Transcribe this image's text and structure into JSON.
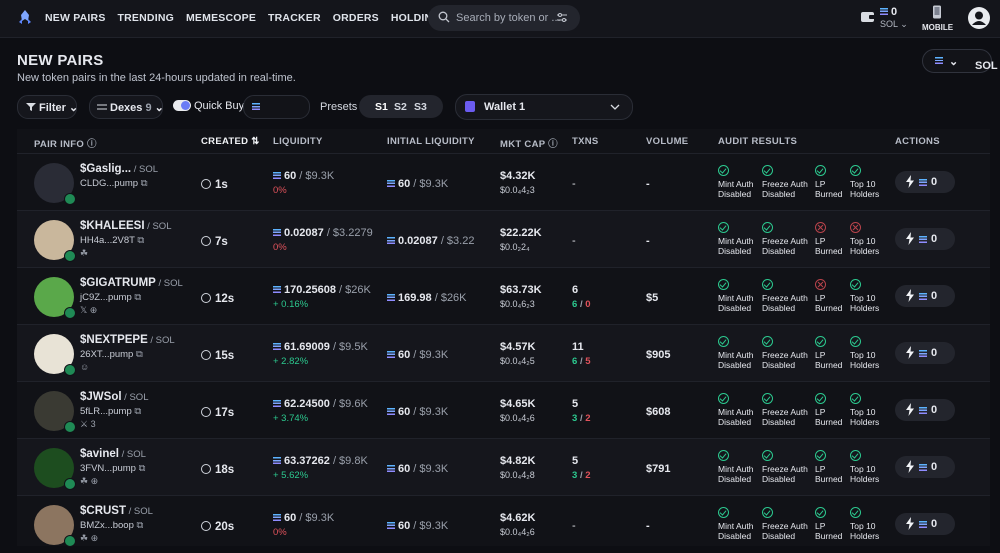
{
  "nav": {
    "items": [
      "NEW PAIRS",
      "TRENDING",
      "MEMESCOPE",
      "TRACKER",
      "ORDERS",
      "HOLDINGS"
    ]
  },
  "search": {
    "placeholder": "Search by token or ..."
  },
  "wallet_top": {
    "amount": "0",
    "currency": "SOL"
  },
  "mobile": {
    "label": "MOBILE"
  },
  "page": {
    "title": "NEW PAIRS",
    "subtitle": "New token pairs in the last 24-hours updated in real-time.",
    "chain": "SOL"
  },
  "controls": {
    "filter": "Filter",
    "dexes": "Dexes",
    "dexes_count": "9",
    "quick_buy": "Quick Buy",
    "presets_label": "Presets",
    "presets": [
      "S1",
      "S2",
      "S3"
    ],
    "wallet": "Wallet 1"
  },
  "table": {
    "headers": {
      "pair_info": "PAIR INFO",
      "created": "CREATED",
      "liquidity": "LIQUIDITY",
      "initial_liquidity": "INITIAL LIQUIDITY",
      "mkt_cap": "MKT CAP",
      "txns": "TXNS",
      "volume": "VOLUME",
      "audit": "AUDIT RESULTS",
      "actions": "ACTIONS"
    },
    "audit_labels": {
      "mint": [
        "Mint Auth",
        "Disabled"
      ],
      "freeze": [
        "Freeze Auth",
        "Disabled"
      ],
      "lp": [
        "LP",
        "Burned"
      ],
      "top": [
        "Top 10",
        "Holders"
      ]
    },
    "rows": [
      {
        "name": "$Gaslig...",
        "pair": " / SOL",
        "addr": "CLDG...pump",
        "socials": "",
        "created": "1s",
        "liq": "60",
        "liq_usd": " / $9.3K",
        "liq_pct": "0%",
        "liq_pct_color": "red",
        "iliq": "60",
        "iliq_usd": " / $9.3K",
        "mcap": "$4.32K",
        "price": "$0.0₄4₂3",
        "txns": "-",
        "buys": "",
        "sells": "",
        "volume": "-",
        "audit": [
          "ok",
          "ok",
          "ok",
          "ok"
        ],
        "action": "0",
        "avatar_color": "#2a2c36"
      },
      {
        "name": "$KHALEESI",
        "pair": " / SOL",
        "addr": "HH4a...2V8T",
        "socials": "☘",
        "created": "7s",
        "liq": "0.02087",
        "liq_usd": " / $3.2279",
        "liq_pct": "0%",
        "liq_pct_color": "red",
        "iliq": "0.02087",
        "iliq_usd": " / $3.22",
        "mcap": "$22.22K",
        "price": "$0.0₂2₄",
        "txns": "-",
        "buys": "",
        "sells": "",
        "volume": "-",
        "audit": [
          "ok",
          "ok",
          "bad",
          "bad"
        ],
        "action": "0",
        "avatar_color": "#c9b79c"
      },
      {
        "name": "$GIGATRUMP",
        "pair": " / SOL",
        "addr": "jC9Z...pump",
        "socials": "𝕏 ⊕",
        "created": "12s",
        "liq": "170.25608",
        "liq_usd": " / $26K",
        "liq_pct": "+ 0.16%",
        "liq_pct_color": "green",
        "iliq": "169.98",
        "iliq_usd": " / $26K",
        "mcap": "$63.73K",
        "price": "$0.0₄6₂3",
        "txns": "6",
        "buys": "6",
        "sells": "0",
        "volume": "$5",
        "audit": [
          "ok",
          "ok",
          "bad",
          "ok"
        ],
        "action": "0",
        "avatar_color": "#5aa84a"
      },
      {
        "name": "$NEXTPEPE",
        "pair": " / SOL",
        "addr": "26XT...pump",
        "socials": "☺",
        "created": "15s",
        "liq": "61.69009",
        "liq_usd": " / $9.5K",
        "liq_pct": "+ 2.82%",
        "liq_pct_color": "green",
        "iliq": "60",
        "iliq_usd": " / $9.3K",
        "mcap": "$4.57K",
        "price": "$0.0₄4₂5",
        "txns": "11",
        "buys": "6",
        "sells": "5",
        "volume": "$905",
        "audit": [
          "ok",
          "ok",
          "ok",
          "ok"
        ],
        "action": "0",
        "avatar_color": "#e8e3d6"
      },
      {
        "name": "$JWSol",
        "pair": " / SOL",
        "addr": "5fLR...pump",
        "socials": "⚔ 3",
        "created": "17s",
        "liq": "62.24500",
        "liq_usd": " / $9.6K",
        "liq_pct": "+ 3.74%",
        "liq_pct_color": "green",
        "iliq": "60",
        "iliq_usd": " / $9.3K",
        "mcap": "$4.65K",
        "price": "$0.0₄4₂6",
        "txns": "5",
        "buys": "3",
        "sells": "2",
        "volume": "$608",
        "audit": [
          "ok",
          "ok",
          "ok",
          "ok"
        ],
        "action": "0",
        "avatar_color": "#3a3a33"
      },
      {
        "name": "$avinel",
        "pair": " / SOL",
        "addr": "3FVN...pump",
        "socials": "☘ ⊕",
        "created": "18s",
        "liq": "63.37262",
        "liq_usd": " / $9.8K",
        "liq_pct": "+ 5.62%",
        "liq_pct_color": "green",
        "iliq": "60",
        "iliq_usd": " / $9.3K",
        "mcap": "$4.82K",
        "price": "$0.0₄4₂8",
        "txns": "5",
        "buys": "3",
        "sells": "2",
        "volume": "$791",
        "audit": [
          "ok",
          "ok",
          "ok",
          "ok"
        ],
        "action": "0",
        "avatar_color": "#1d4d1f"
      },
      {
        "name": "$CRUST",
        "pair": " / SOL",
        "addr": "BMZx...boop",
        "socials": "☘ ⊕",
        "created": "20s",
        "liq": "60",
        "liq_usd": " / $9.3K",
        "liq_pct": "0%",
        "liq_pct_color": "red",
        "iliq": "60",
        "iliq_usd": " / $9.3K",
        "mcap": "$4.62K",
        "price": "$0.0₄4₂6",
        "txns": "-",
        "buys": "",
        "sells": "",
        "volume": "-",
        "audit": [
          "ok",
          "ok",
          "ok",
          "ok"
        ],
        "action": "0",
        "avatar_color": "#8c7560"
      }
    ]
  }
}
